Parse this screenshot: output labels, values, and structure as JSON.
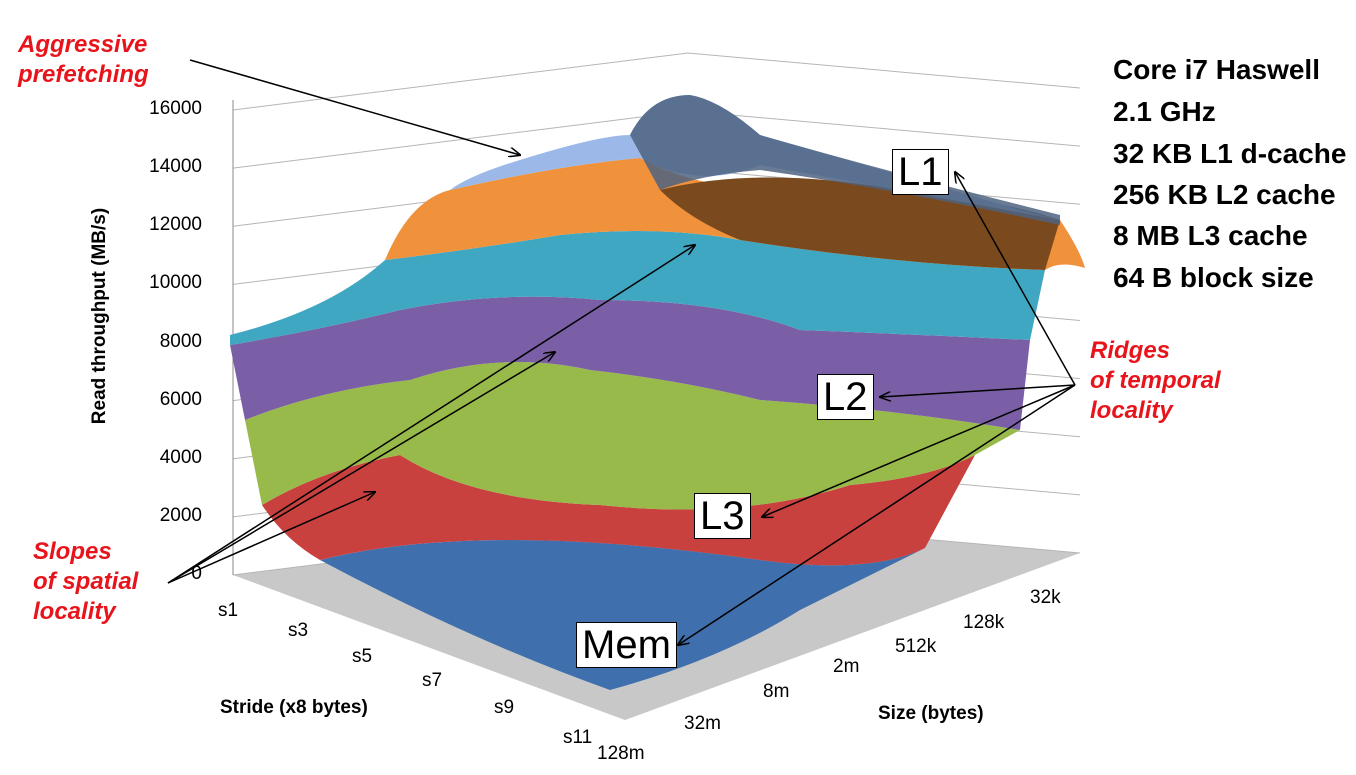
{
  "chart_data": {
    "type": "surface3d",
    "title": "",
    "zlabel": "Read throughput (MB/s)",
    "xlabel": "Stride (x8 bytes)",
    "ylabel": "Size (bytes)",
    "zlim": [
      0,
      16000
    ],
    "z_ticks": [
      "0",
      "2000",
      "4000",
      "6000",
      "8000",
      "10000",
      "12000",
      "14000",
      "16000"
    ],
    "stride_ticks": [
      "s1",
      "s3",
      "s5",
      "s7",
      "s9",
      "s11"
    ],
    "size_ticks": [
      "128m",
      "32m",
      "8m",
      "2m",
      "512k",
      "128k",
      "32k"
    ],
    "bands": [
      {
        "range": "0-2000",
        "color": "#3f6fad"
      },
      {
        "range": "2000-4000",
        "color": "#c9413f"
      },
      {
        "range": "4000-6000",
        "color": "#98ba4a"
      },
      {
        "range": "6000-8000",
        "color": "#7b5fa6"
      },
      {
        "range": "8000-10000",
        "color": "#3fa7c2"
      },
      {
        "range": "10000-12000",
        "color": "#f0913c"
      },
      {
        "range": "12000-14000",
        "color": "#9bb8e8"
      },
      {
        "range": "14000-16000",
        "color": "#3f6fad"
      }
    ],
    "levels": [
      "L1",
      "L2",
      "L3",
      "Mem"
    ]
  },
  "annotations": {
    "prefetch": [
      "Aggressive",
      "prefetching"
    ],
    "spatial": [
      "Slopes",
      "of spatial",
      "locality"
    ],
    "temporal": [
      "Ridges",
      "of temporal",
      "locality"
    ]
  },
  "specs": [
    "Core i7 Haswell",
    "2.1 GHz",
    "32 KB L1 d-cache",
    "256 KB L2 cache",
    "8 MB L3 cache",
    "64 B block size"
  ],
  "labels": {
    "l1": "L1",
    "l2": "L2",
    "l3": "L3",
    "mem": "Mem"
  }
}
